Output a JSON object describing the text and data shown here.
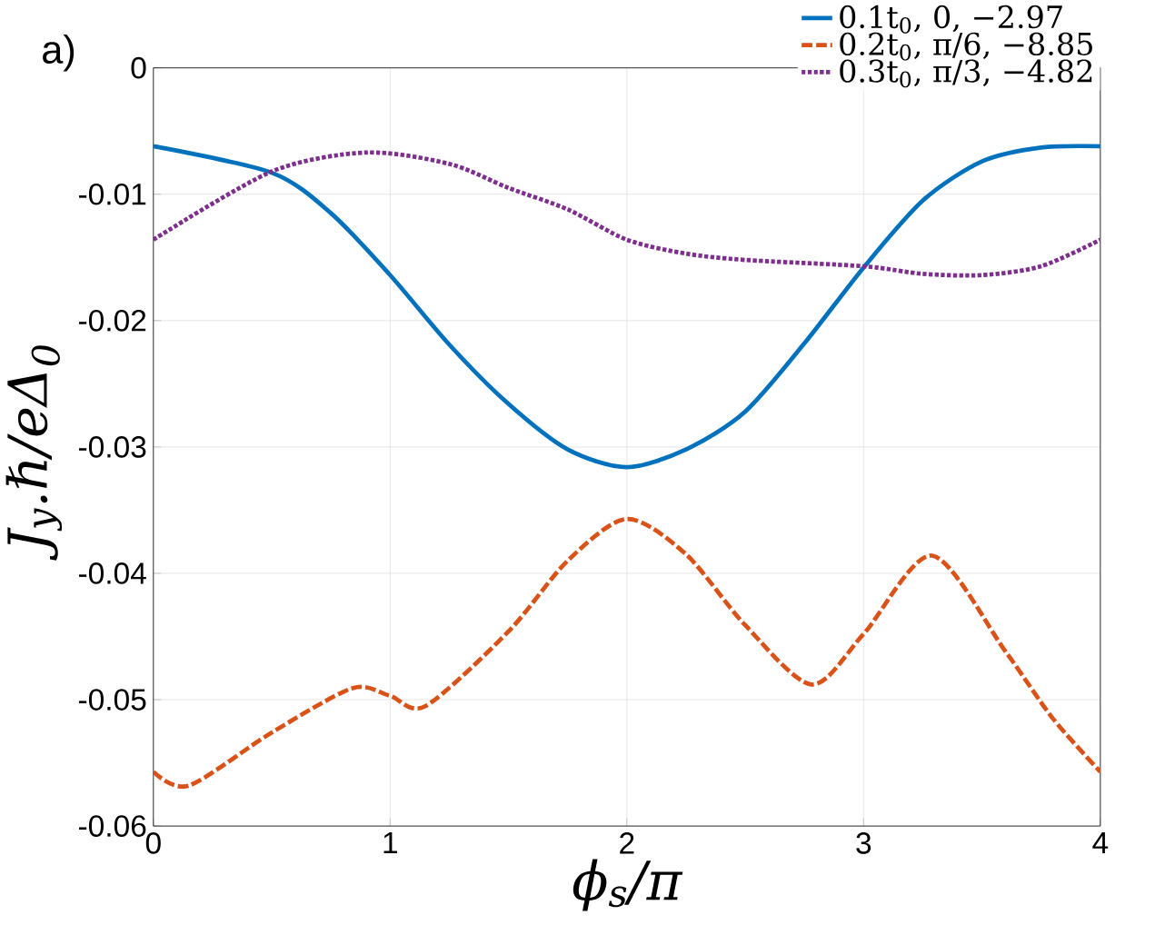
{
  "chart_data": {
    "type": "line",
    "xlabel": "ϕ$_{s}$/π",
    "ylabel": "J$_{y}$.ℏ/eΔ$_{0}$",
    "annotations": [
      "a)"
    ],
    "xlim": [
      0,
      4
    ],
    "ylim": [
      -0.06,
      0
    ],
    "xticks": [
      0,
      1,
      2,
      3,
      4
    ],
    "yticks": [
      {
        "value": -0.06,
        "label": "-0.06"
      },
      {
        "value": -0.05,
        "label": "-0.05"
      },
      {
        "value": -0.04,
        "label": "-0.04"
      },
      {
        "value": -0.03,
        "label": "-0.03"
      },
      {
        "value": -0.02,
        "label": "-0.02"
      },
      {
        "value": -0.01,
        "label": "-0.01"
      },
      0
    ],
    "grid": true,
    "legend": "top right",
    "series": [
      {
        "name": "0.1t$_{0}$, 0, −2.97",
        "color": "#0072bd",
        "line_style": "solid",
        "x": [
          0,
          0.5,
          0.75,
          1,
          1.25,
          1.5,
          1.75,
          2,
          2.25,
          2.5,
          2.75,
          3,
          3.25,
          3.5,
          3.75,
          4
        ],
        "values": [
          -0.0062,
          -0.0083,
          -0.0115,
          -0.0164,
          -0.0219,
          -0.0266,
          -0.0302,
          -0.0316,
          -0.0302,
          -0.0272,
          -0.0218,
          -0.0158,
          -0.0105,
          -0.0074,
          -0.0063,
          -0.0062
        ]
      },
      {
        "name": "0.2t$_{0}$, π/6, −8.85",
        "color": "#d95319",
        "line_style": "dashed",
        "x": [
          0,
          0.15,
          0.5,
          0.84,
          1,
          1.15,
          1.5,
          1.75,
          2,
          2.25,
          2.5,
          2.78,
          3,
          3.29,
          3.6,
          3.8,
          4
        ],
        "values": [
          -0.0557,
          -0.0568,
          -0.0526,
          -0.0491,
          -0.0497,
          -0.0505,
          -0.0446,
          -0.039,
          -0.0357,
          -0.0385,
          -0.0441,
          -0.0488,
          -0.0448,
          -0.0386,
          -0.0462,
          -0.0515,
          -0.0557
        ]
      },
      {
        "name": "0.3t$_{0}$, π/3, −4.82",
        "color": "#7e2f8e",
        "line_style": "dotted",
        "x": [
          0,
          0.5,
          0.9,
          1.25,
          1.5,
          1.75,
          2,
          2.25,
          2.5,
          3,
          3.25,
          3.5,
          3.75,
          4
        ],
        "values": [
          -0.0136,
          -0.0082,
          -0.0067,
          -0.0076,
          -0.0095,
          -0.0112,
          -0.0136,
          -0.0147,
          -0.0152,
          -0.0157,
          -0.0163,
          -0.0164,
          -0.0157,
          -0.0136
        ]
      }
    ]
  }
}
